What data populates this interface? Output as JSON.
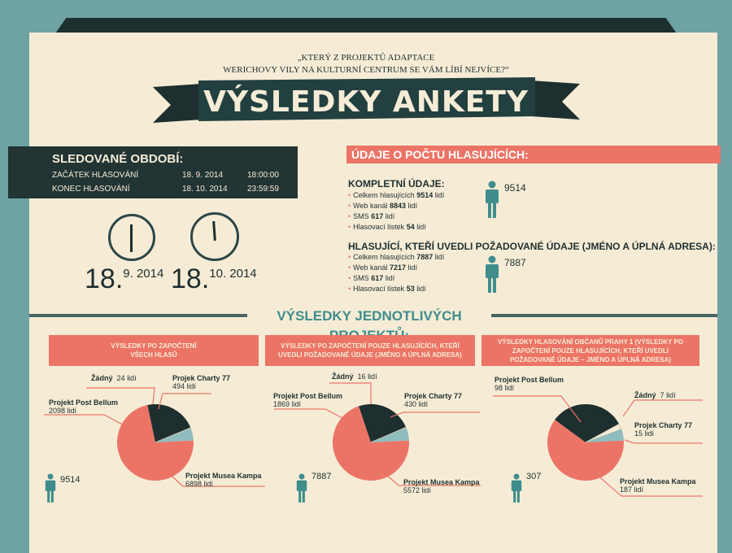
{
  "question": {
    "line1": "„Který z projektů adaptace",
    "line2": "Werichovy vily na kulturní centrum se vám líbí nejvíce?“"
  },
  "title": "VÝSLEDKY ANKETY",
  "period": {
    "heading": "SLEDOVANÉ OBDOBÍ:",
    "start_label": "ZAČÁTEK HLASOVÁNÍ",
    "start_date": "18. 9. 2014",
    "start_time": "18:00:00",
    "end_label": "KONEC HLASOVÁNÍ",
    "end_date": "18. 10. 2014",
    "end_time": "23:59:59"
  },
  "dates": {
    "d1_day": "18.",
    "d1_rest": "9. 2014",
    "d2_day": "18.",
    "d2_rest": "10. 2014"
  },
  "voters": {
    "heading": "ÚDAJE O POČTU HLASUJÍCÍCH:",
    "complete": {
      "heading": "KOMPLETNÍ ÚDAJE:",
      "items": [
        {
          "label": "Celkem hlasujících",
          "value": "9514",
          "unit": "lidí"
        },
        {
          "label": "Web kanál",
          "value": "8843",
          "unit": "lidí"
        },
        {
          "label": "SMS",
          "value": "617",
          "unit": "lidí"
        },
        {
          "label": "Hlasovací lístek",
          "value": "54",
          "unit": "lidí"
        }
      ],
      "total": "9514"
    },
    "filtered": {
      "heading": "HLASUJÍCÍ, KTEŘÍ UVEDLI POŽADOVANÉ ÚDAJE (JMÉNO A ÚPLNÁ ADRESA):",
      "items": [
        {
          "label": "Celkem hlasujících",
          "value": "7887",
          "unit": "lidí"
        },
        {
          "label": "Web kanál",
          "value": "7217",
          "unit": "lidí"
        },
        {
          "label": "SMS",
          "value": "617",
          "unit": "lidí"
        },
        {
          "label": "Hlasovací lístek",
          "value": "53",
          "unit": "lidí"
        }
      ],
      "total": "7887"
    }
  },
  "projects_heading": "VÝSLEDKY JEDNOTLIVÝCH PROJEKTŮ:",
  "colors": {
    "dark": "#1e2f2f",
    "pink": "#ec7467",
    "teal_light": "#8fbcbc",
    "cream": "#f6ecd6",
    "teal": "#3f8d8d"
  },
  "columns": [
    {
      "header": "Výsledky po započtení všech hlasů",
      "total": "9514"
    },
    {
      "header": "Výsledky po započtení pouze hlasujících, kteří uvedli požadované údaje (jméno a úplná adresa)",
      "total": "7887"
    },
    {
      "header": "Výsledky hlasování občanů Prahy 1 (výsledky po započtení pouze hlasujících, kteří uvedli požadované údaje – jméno a úplná adresa)",
      "total": "307"
    }
  ],
  "chart_data": [
    {
      "type": "pie",
      "title": "Výsledky po započtení všech hlasů",
      "slices": [
        {
          "name": "Projekt Musea Kampa",
          "value": 6898,
          "unit": "lidí",
          "color": "#ec7467"
        },
        {
          "name": "Projekt Post Bellum",
          "value": 2098,
          "unit": "lidí",
          "color": "#1e2f2f"
        },
        {
          "name": "Žádný",
          "value": 24,
          "unit": "lidí",
          "color": "#f6ecd6"
        },
        {
          "name": "Projek Charty 77",
          "value": 494,
          "unit": "lidí",
          "color": "#8fbcbc"
        }
      ]
    },
    {
      "type": "pie",
      "title": "Výsledky po započtení pouze hlasujících, kteří uvedli požadované údaje (jméno a úplná adresa)",
      "slices": [
        {
          "name": "Projekt Musea Kampa",
          "value": 5572,
          "unit": "lidí",
          "color": "#ec7467"
        },
        {
          "name": "Projekt Post Bellum",
          "value": 1869,
          "unit": "lidí",
          "color": "#1e2f2f"
        },
        {
          "name": "Žádný",
          "value": 16,
          "unit": "lidí",
          "color": "#f6ecd6"
        },
        {
          "name": "Projek Charty 77",
          "value": 430,
          "unit": "lidí",
          "color": "#8fbcbc"
        }
      ]
    },
    {
      "type": "pie",
      "title": "Výsledky hlasování občanů Prahy 1 (výsledky po započtení pouze hlasujících, kteří uvedli požadované údaje – jméno a úplná adresa)",
      "slices": [
        {
          "name": "Projekt Musea Kampa",
          "value": 187,
          "unit": "lidí",
          "color": "#ec7467"
        },
        {
          "name": "Projekt Post Bellum",
          "value": 98,
          "unit": "lidí",
          "color": "#1e2f2f"
        },
        {
          "name": "Žádný",
          "value": 7,
          "unit": "lidí",
          "color": "#f6ecd6"
        },
        {
          "name": "Projek Charty 77",
          "value": 15,
          "unit": "lidí",
          "color": "#8fbcbc"
        }
      ]
    }
  ]
}
